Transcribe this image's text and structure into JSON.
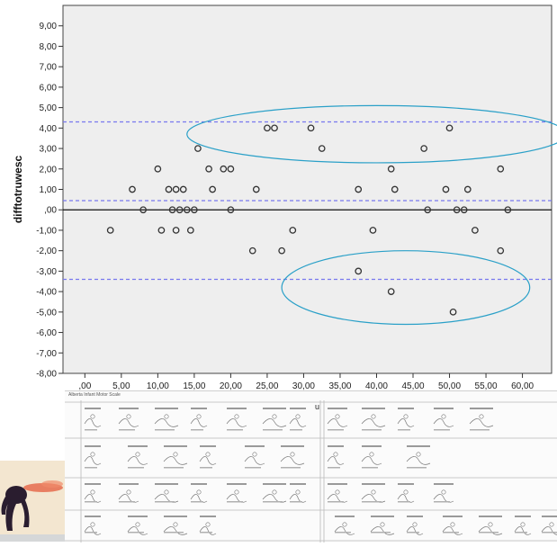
{
  "chart_data": {
    "type": "scatter",
    "title": "",
    "xlabel": "",
    "ylabel": "difftotruwesc",
    "xlim": [
      -3,
      64
    ],
    "ylim": [
      -8,
      10
    ],
    "x_ticks": [
      0,
      5,
      10,
      15,
      20,
      25,
      30,
      35,
      40,
      45,
      50,
      55,
      60
    ],
    "x_tick_labels": [
      ",00",
      "5,00",
      "10,00",
      "15,00",
      "20,00",
      "25,00",
      "30,00",
      "35,00",
      "40,00",
      "45,00",
      "50,00",
      "55,00",
      "60,00"
    ],
    "y_ticks": [
      -8,
      -7,
      -6,
      -5,
      -4,
      -3,
      -2,
      -1,
      0,
      1,
      2,
      3,
      4,
      5,
      6,
      7,
      8,
      9
    ],
    "y_tick_labels": [
      "-8,00",
      "-7,00",
      "-6,00",
      "-5,00",
      "-4,00",
      "-3,00",
      "-2,00",
      "-1,00",
      ",00",
      "1,00",
      "2,00",
      "3,00",
      "4,00",
      "5,00",
      "6,00",
      "7,00",
      "8,00",
      "9,00"
    ],
    "zero_line": 0,
    "reference_lines": [
      4.3,
      0.45,
      -3.4
    ],
    "grid": false,
    "background": "#eeeeee",
    "marker_color": "#333333",
    "line_color": "#111111",
    "reference_line_color": "#7777ee",
    "highlight_color": "#2aa0c8",
    "highlights": [
      {
        "center": [
          40,
          3.7
        ],
        "radii": [
          26,
          1.4
        ]
      },
      {
        "center": [
          44,
          -3.8
        ],
        "radii": [
          17,
          1.8
        ]
      }
    ],
    "points": [
      [
        3.5,
        -1
      ],
      [
        6.5,
        1
      ],
      [
        8,
        0
      ],
      [
        10,
        2
      ],
      [
        10.5,
        -1
      ],
      [
        11.5,
        1
      ],
      [
        12,
        0
      ],
      [
        12.5,
        -1
      ],
      [
        12.5,
        1
      ],
      [
        13,
        0
      ],
      [
        13.5,
        1
      ],
      [
        14,
        0
      ],
      [
        14.5,
        -1
      ],
      [
        15,
        0
      ],
      [
        15.5,
        3
      ],
      [
        17,
        2
      ],
      [
        17.5,
        1
      ],
      [
        19,
        2
      ],
      [
        20,
        2
      ],
      [
        20,
        0
      ],
      [
        23,
        -2
      ],
      [
        23.5,
        1
      ],
      [
        25,
        4
      ],
      [
        26,
        4
      ],
      [
        27,
        -2
      ],
      [
        28.5,
        -1
      ],
      [
        31,
        4
      ],
      [
        32.5,
        3
      ],
      [
        37.5,
        1
      ],
      [
        37.5,
        -3
      ],
      [
        39.5,
        -1
      ],
      [
        42,
        2
      ],
      [
        42,
        -4
      ],
      [
        42.5,
        1
      ],
      [
        46.5,
        3
      ],
      [
        47,
        0
      ],
      [
        49.5,
        1
      ],
      [
        50,
        4
      ],
      [
        50.5,
        -5
      ],
      [
        51,
        0
      ],
      [
        52,
        0
      ],
      [
        52.5,
        1
      ],
      [
        53.5,
        -1
      ],
      [
        57,
        2
      ],
      [
        57,
        -2
      ],
      [
        58,
        0
      ]
    ]
  },
  "scan": {
    "title": "Alberta Infant Motor Scale",
    "marker": "u"
  }
}
